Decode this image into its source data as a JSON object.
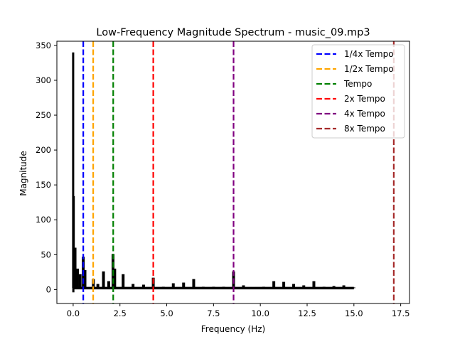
{
  "chart_data": {
    "type": "line",
    "title": "Low-Frequency Magnitude Spectrum - music_09.mp3",
    "xlabel": "Frequency (Hz)",
    "ylabel": "Magnitude",
    "xlim": [
      -0.87,
      17.97
    ],
    "ylim": [
      -20,
      356
    ],
    "xticks": [
      0.0,
      2.5,
      5.0,
      7.5,
      10.0,
      12.5,
      15.0,
      17.5
    ],
    "xtick_labels": [
      "0.0",
      "2.5",
      "5.0",
      "7.5",
      "10.0",
      "12.5",
      "15.0",
      "17.5"
    ],
    "yticks": [
      0,
      50,
      100,
      150,
      200,
      250,
      300,
      350
    ],
    "ytick_labels": [
      "0",
      "50",
      "100",
      "150",
      "200",
      "250",
      "300",
      "350"
    ],
    "grid": false,
    "legend_position": "top-right",
    "spectrum": {
      "color": "#000000",
      "x_range": [
        0,
        15
      ],
      "baseline": 2,
      "peaks": [
        {
          "x": 0.0,
          "y": 340
        },
        {
          "x": 0.03,
          "y": 134
        },
        {
          "x": 0.1,
          "y": 60
        },
        {
          "x": 0.23,
          "y": 30
        },
        {
          "x": 0.37,
          "y": 22
        },
        {
          "x": 0.54,
          "y": 47
        },
        {
          "x": 0.63,
          "y": 28
        },
        {
          "x": 1.08,
          "y": 15
        },
        {
          "x": 1.32,
          "y": 8
        },
        {
          "x": 1.62,
          "y": 26
        },
        {
          "x": 1.9,
          "y": 12
        },
        {
          "x": 2.13,
          "y": 51
        },
        {
          "x": 2.22,
          "y": 30
        },
        {
          "x": 2.67,
          "y": 22
        },
        {
          "x": 3.2,
          "y": 8
        },
        {
          "x": 3.76,
          "y": 7
        },
        {
          "x": 4.28,
          "y": 17
        },
        {
          "x": 4.82,
          "y": 4
        },
        {
          "x": 5.35,
          "y": 9
        },
        {
          "x": 5.9,
          "y": 10
        },
        {
          "x": 6.44,
          "y": 15
        },
        {
          "x": 6.95,
          "y": 4
        },
        {
          "x": 7.5,
          "y": 4
        },
        {
          "x": 8.04,
          "y": 4
        },
        {
          "x": 8.57,
          "y": 26
        },
        {
          "x": 9.1,
          "y": 6
        },
        {
          "x": 9.64,
          "y": 3
        },
        {
          "x": 10.18,
          "y": 4
        },
        {
          "x": 10.72,
          "y": 12
        },
        {
          "x": 11.25,
          "y": 11
        },
        {
          "x": 11.78,
          "y": 8
        },
        {
          "x": 12.32,
          "y": 6
        },
        {
          "x": 12.86,
          "y": 12
        },
        {
          "x": 13.4,
          "y": 4
        },
        {
          "x": 13.93,
          "y": 5
        },
        {
          "x": 14.46,
          "y": 6
        },
        {
          "x": 15.0,
          "y": 3
        }
      ]
    },
    "vlines": [
      {
        "name": "1/4x Tempo",
        "x": 0.54,
        "color": "#0000ff"
      },
      {
        "name": "1/2x Tempo",
        "x": 1.07,
        "color": "#ffa500"
      },
      {
        "name": "Tempo",
        "x": 2.14,
        "color": "#008000"
      },
      {
        "name": "2x Tempo",
        "x": 4.28,
        "color": "#ff0000"
      },
      {
        "name": "4x Tempo",
        "x": 8.57,
        "color": "#800080"
      },
      {
        "name": "8x Tempo",
        "x": 17.13,
        "color": "#a52a2a"
      }
    ]
  }
}
